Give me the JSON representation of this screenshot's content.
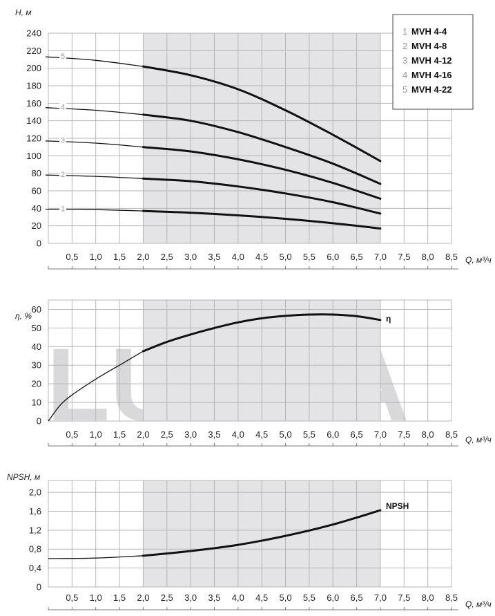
{
  "watermark": "LUNDA",
  "colors": {
    "band": "#e4e4e6",
    "grid": "#b5b5b5",
    "curve": "#111111",
    "watermark": "#d9d9dc"
  },
  "chart_data": [
    {
      "id": "head",
      "type": "line",
      "ylabel": "H, м",
      "xlabel": "Q, м³/ч",
      "xlim": [
        0,
        8.5
      ],
      "ylim": [
        0,
        240
      ],
      "x_ticks": [
        "0,5",
        "1,0",
        "1,5",
        "2,0",
        "2,5",
        "3,0",
        "3,5",
        "4,0",
        "4,5",
        "5,0",
        "5,5",
        "6,0",
        "6,5",
        "7,0",
        "7,5",
        "8,0",
        "8,5"
      ],
      "y_ticks": [
        "0",
        "20",
        "40",
        "60",
        "80",
        "100",
        "120",
        "140",
        "160",
        "180",
        "200",
        "220",
        "240"
      ],
      "y_step": 20,
      "working_range": [
        2.0,
        7.0
      ],
      "grid": true,
      "legend_position": "top-right",
      "series": [
        {
          "name": "MVH 4-4",
          "label": "1",
          "points": [
            [
              -0.05,
              39
            ],
            [
              1,
              38.5
            ],
            [
              2,
              37
            ],
            [
              3,
              35
            ],
            [
              4,
              32
            ],
            [
              5,
              28
            ],
            [
              6,
              23
            ],
            [
              7,
              17
            ]
          ]
        },
        {
          "name": "MVH 4-8",
          "label": "2",
          "points": [
            [
              -0.05,
              78
            ],
            [
              1,
              76.5
            ],
            [
              2,
              74
            ],
            [
              3,
              71
            ],
            [
              4,
              65
            ],
            [
              5,
              57
            ],
            [
              6,
              47
            ],
            [
              7,
              34
            ]
          ]
        },
        {
          "name": "MVH 4-12",
          "label": "3",
          "points": [
            [
              -0.05,
              117
            ],
            [
              1,
              114.5
            ],
            [
              2,
              110
            ],
            [
              3,
              105
            ],
            [
              4,
              96
            ],
            [
              5,
              84
            ],
            [
              6,
              69
            ],
            [
              7,
              51
            ]
          ]
        },
        {
          "name": "MVH 4-16",
          "label": "4",
          "points": [
            [
              -0.05,
              155
            ],
            [
              1,
              152
            ],
            [
              2,
              147
            ],
            [
              3,
              140
            ],
            [
              4,
              127
            ],
            [
              5,
              110
            ],
            [
              6,
              91
            ],
            [
              7,
              68
            ]
          ]
        },
        {
          "name": "MVH 4-22",
          "label": "5",
          "points": [
            [
              -0.05,
              213
            ],
            [
              1,
              209
            ],
            [
              2,
              202
            ],
            [
              3,
              192
            ],
            [
              4,
              176
            ],
            [
              5,
              152
            ],
            [
              6,
              124
            ],
            [
              7,
              94
            ]
          ]
        }
      ]
    },
    {
      "id": "efficiency",
      "type": "line",
      "ylabel": "η, %",
      "xlabel": "Q, м³/ч",
      "xlim": [
        0,
        8.5
      ],
      "ylim": [
        0,
        65
      ],
      "x_ticks": [
        "0,5",
        "1,0",
        "1,5",
        "2,0",
        "2,5",
        "3,0",
        "3,5",
        "4,0",
        "4,5",
        "5,0",
        "5,5",
        "6,0",
        "6,5",
        "7,0",
        "7,5",
        "8,0",
        "8,5"
      ],
      "y_ticks": [
        "0",
        "10",
        "20",
        "30",
        "40",
        "50",
        "60"
      ],
      "y_step": 10,
      "working_range": [
        2.0,
        7.0
      ],
      "grid": true,
      "series": [
        {
          "name": "η",
          "label": "η",
          "points": [
            [
              0,
              0
            ],
            [
              0.25,
              8.5
            ],
            [
              0.5,
              14
            ],
            [
              1,
              22.5
            ],
            [
              1.5,
              30
            ],
            [
              2,
              37.5
            ],
            [
              2.5,
              42.5
            ],
            [
              3,
              46.5
            ],
            [
              3.5,
              50
            ],
            [
              4,
              53
            ],
            [
              4.5,
              55.2
            ],
            [
              5,
              56.5
            ],
            [
              5.5,
              57.2
            ],
            [
              6,
              57.2
            ],
            [
              6.5,
              56.3
            ],
            [
              7,
              54.3
            ]
          ]
        }
      ]
    },
    {
      "id": "npsh",
      "type": "line",
      "ylabel": "NPSH, м",
      "xlabel": "Q, м³/ч",
      "xlim": [
        0,
        8.5
      ],
      "ylim": [
        0,
        2.25
      ],
      "x_ticks": [
        "0,5",
        "1,0",
        "1,5",
        "2,0",
        "2,5",
        "3,0",
        "3,5",
        "4,0",
        "4,5",
        "5,0",
        "5,5",
        "6,0",
        "6,5",
        "7,0",
        "7,5",
        "8,0",
        "8,5"
      ],
      "y_ticks": [
        "0",
        "0,4",
        "0,8",
        "1,2",
        "1,6",
        "2,0"
      ],
      "y_step": 0.4,
      "working_range": [
        2.0,
        7.0
      ],
      "grid": true,
      "series": [
        {
          "name": "NPSH",
          "label": "NPSH",
          "points": [
            [
              0,
              0.6
            ],
            [
              1,
              0.61
            ],
            [
              2,
              0.66
            ],
            [
              3,
              0.76
            ],
            [
              4,
              0.89
            ],
            [
              5,
              1.08
            ],
            [
              6,
              1.32
            ],
            [
              7,
              1.62
            ]
          ]
        }
      ]
    }
  ]
}
